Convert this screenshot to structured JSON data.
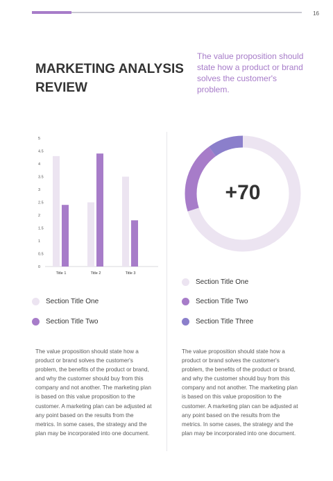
{
  "page": {
    "number": "16",
    "title": "MARKETING ANALYSIS REVIEW",
    "tagline": "The value proposition should state how a product or brand solves the customer's problem."
  },
  "colors": {
    "accent": "#a77cc9",
    "light": "#ece4f1",
    "violet": "#9a8ad0"
  },
  "chart_data": {
    "type": "bar",
    "categories": [
      "Title 1",
      "Title 2",
      "Title 3"
    ],
    "series": [
      {
        "values": [
          4.3,
          2.5,
          3.5
        ],
        "color": "#ece4f1"
      },
      {
        "values": [
          2.4,
          4.4,
          1.8
        ],
        "color": "#a77cc9"
      }
    ],
    "ylim": [
      0,
      5
    ],
    "yticks": [
      "0",
      "0.5",
      "1",
      "1.5",
      "2",
      "2.5",
      "3",
      "3.5",
      "4",
      "4.5",
      "5"
    ],
    "grid": false
  },
  "donut": {
    "value": "+70",
    "segments": [
      {
        "value": 70,
        "color": "#ece4f1"
      },
      {
        "value": 20,
        "color": "#a77cc9"
      },
      {
        "value": 10,
        "color": "#8b7fcb"
      }
    ]
  },
  "left_legend": [
    {
      "label": "Section Title One",
      "color": "#ece4f1"
    },
    {
      "label": "Section Title Two",
      "color": "#a77cc9"
    }
  ],
  "right_legend": [
    {
      "label": "Section Title One",
      "color": "#ece4f1"
    },
    {
      "label": "Section Title Two",
      "color": "#a77cc9"
    },
    {
      "label": "Section Title Three",
      "color": "#8b7fcb"
    }
  ],
  "body": {
    "left": "The value proposition should state how a product or brand solves the customer's problem, the benefits of the product or brand, and why the customer should buy from this company and not another. The marketing plan is based on this value proposition to the customer. A marketing plan can be adjusted at any point based on the results from the metrics. In some cases, the strategy and the plan may be incorporated into one document.",
    "right": "The value proposition should state how a product or brand solves the customer's problem, the benefits of the product or brand, and why the customer should buy from this company and not another. The marketing plan is based on this value proposition to the customer. A marketing plan can be adjusted at any point based on the results from the metrics. In some cases, the strategy and the plan may be incorporated into one document."
  }
}
